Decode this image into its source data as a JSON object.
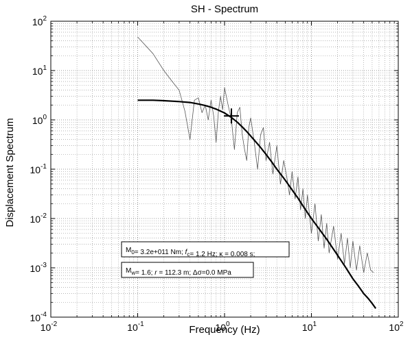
{
  "chart_data": {
    "type": "line",
    "title": "SH - Spectrum",
    "xlabel": "Frequency (Hz)",
    "ylabel": "Displacement Spectrum",
    "x_scale": "log",
    "y_scale": "log",
    "xlim": [
      0.01,
      100
    ],
    "ylim": [
      0.0001,
      100
    ],
    "grid": true,
    "x_ticks": [
      {
        "base": "10",
        "exp": "-2",
        "value": 0.01
      },
      {
        "base": "10",
        "exp": "-1",
        "value": 0.1
      },
      {
        "base": "10",
        "exp": "0",
        "value": 1
      },
      {
        "base": "10",
        "exp": "1",
        "value": 10
      },
      {
        "base": "10",
        "exp": "2",
        "value": 100
      }
    ],
    "y_ticks": [
      {
        "base": "10",
        "exp": "-4",
        "value": 0.0001
      },
      {
        "base": "10",
        "exp": "-3",
        "value": 0.001
      },
      {
        "base": "10",
        "exp": "-2",
        "value": 0.01
      },
      {
        "base": "10",
        "exp": "-1",
        "value": 0.1
      },
      {
        "base": "10",
        "exp": "0",
        "value": 1
      },
      {
        "base": "10",
        "exp": "1",
        "value": 10
      },
      {
        "base": "10",
        "exp": "2",
        "value": 100
      }
    ],
    "series": [
      {
        "color": "#555555",
        "x": [
          0.1,
          0.15,
          0.2,
          0.25,
          0.3,
          0.35,
          0.4,
          0.45,
          0.5,
          0.55,
          0.6,
          0.65,
          0.7,
          0.75,
          0.8,
          0.85,
          0.9,
          0.95,
          1.0,
          1.1,
          1.2,
          1.3,
          1.4,
          1.5,
          1.6,
          1.7,
          1.8,
          1.9,
          2.0,
          2.2,
          2.4,
          2.6,
          2.8,
          3.0,
          3.3,
          3.6,
          4.0,
          4.4,
          4.8,
          5.2,
          5.6,
          6.0,
          6.5,
          7.0,
          7.5,
          8.0,
          8.5,
          9.0,
          10,
          11,
          12,
          13,
          14,
          15,
          16,
          18,
          20,
          22,
          24,
          26,
          28,
          30,
          33,
          36,
          40,
          44,
          48,
          52
        ],
        "y": [
          48,
          22,
          10,
          6,
          4,
          1.5,
          0.4,
          2.5,
          2.8,
          1.4,
          2.0,
          1.0,
          2.5,
          1.2,
          0.35,
          1.5,
          3.0,
          1.6,
          4.5,
          2.0,
          1.0,
          0.25,
          1.4,
          1.8,
          0.5,
          0.25,
          0.15,
          0.7,
          1.1,
          0.35,
          0.1,
          0.5,
          0.7,
          0.15,
          0.35,
          0.08,
          0.3,
          0.05,
          0.15,
          0.07,
          0.03,
          0.09,
          0.025,
          0.07,
          0.015,
          0.04,
          0.01,
          0.03,
          0.005,
          0.02,
          0.0035,
          0.012,
          0.0025,
          0.008,
          0.002,
          0.007,
          0.0015,
          0.005,
          0.0012,
          0.004,
          0.001,
          0.0035,
          0.0009,
          0.0028,
          0.0008,
          0.002,
          0.0009,
          0.0008
        ]
      },
      {
        "color": "#000000",
        "x": [
          0.1,
          0.15,
          0.2,
          0.3,
          0.4,
          0.5,
          0.6,
          0.7,
          0.8,
          0.9,
          1.0,
          1.2,
          1.4,
          1.6,
          1.8,
          2.0,
          2.5,
          3.0,
          3.5,
          4.0,
          5.0,
          6.0,
          7.0,
          8.0,
          10,
          12,
          15,
          20,
          25,
          30,
          35,
          40,
          45,
          50,
          55
        ],
        "y": [
          2.5,
          2.5,
          2.45,
          2.35,
          2.25,
          2.1,
          1.95,
          1.8,
          1.65,
          1.5,
          1.38,
          1.12,
          0.9,
          0.72,
          0.58,
          0.47,
          0.3,
          0.2,
          0.14,
          0.1,
          0.06,
          0.038,
          0.026,
          0.018,
          0.01,
          0.0065,
          0.0038,
          0.0018,
          0.001,
          0.0006,
          0.00042,
          0.0003,
          0.00024,
          0.00019,
          0.00015
        ]
      }
    ],
    "corner_frequency_marker": {
      "x": 1.2,
      "y": 1.2
    },
    "annotations": [
      {
        "parts": [
          {
            "text": "M"
          },
          {
            "text": "0",
            "sub": true
          },
          {
            "text": "= 3.2e+011 Nm;  "
          },
          {
            "text": "f",
            "italic": true
          },
          {
            "text": "c",
            "sub": true
          },
          {
            "text": "= 1.2 Hz;  κ = 0.008 s;"
          }
        ]
      },
      {
        "parts": [
          {
            "text": "M"
          },
          {
            "text": "w",
            "sub": true
          },
          {
            "text": "= 1.6;  "
          },
          {
            "text": "r",
            "italic": true
          },
          {
            "text": " = 112.3 m; Δσ=0.0 MPa"
          }
        ]
      }
    ]
  }
}
